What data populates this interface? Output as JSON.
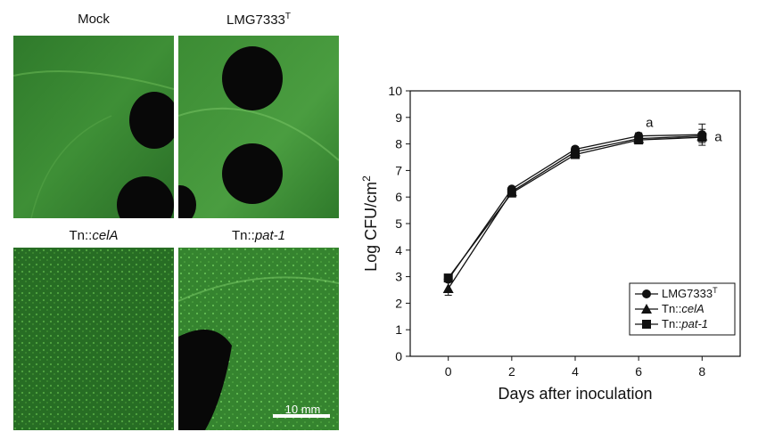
{
  "panels": {
    "mock": {
      "label": "Mock"
    },
    "lmg": {
      "label_main": "LMG7333",
      "label_sup": "T"
    },
    "cela": {
      "label_prefix": "Tn::",
      "label_gene": "celA"
    },
    "pat": {
      "label_prefix": "Tn::",
      "label_gene": "pat-1"
    },
    "scale_bar": {
      "label": "10 mm"
    },
    "colors": {
      "leaf": "#2e7d2a",
      "leaf_light": "#5fb04a",
      "hole": "#080808"
    }
  },
  "chart_data": {
    "type": "line",
    "xlabel": "Days after inoculation",
    "ylabel_main": "Log CFU/cm",
    "ylabel_sup": "2",
    "x": [
      0,
      2,
      4,
      6,
      8
    ],
    "xticks": [
      "0",
      "2",
      "4",
      "6",
      "8"
    ],
    "yticks": [
      "0",
      "1",
      "2",
      "3",
      "4",
      "5",
      "6",
      "7",
      "8",
      "9",
      "10"
    ],
    "xlim": [
      -1.2,
      9.2
    ],
    "ylim": [
      0,
      10
    ],
    "grid": false,
    "legend_position": "bottom-right",
    "series": [
      {
        "name": "LMG7333",
        "name_sup": "T",
        "marker": "circle",
        "values": [
          2.9,
          6.3,
          7.8,
          8.3,
          8.35
        ],
        "errors": [
          0.1,
          0.05,
          0.1,
          0.12,
          0.4
        ]
      },
      {
        "name_prefix": "Tn::",
        "name": "celA",
        "marker": "triangle",
        "values": [
          2.55,
          6.2,
          7.7,
          8.2,
          8.3
        ],
        "errors": [
          0.25,
          0.05,
          0.1,
          0.1,
          0.25
        ]
      },
      {
        "name_prefix": "Tn::",
        "name": "pat-1",
        "marker": "square",
        "values": [
          2.95,
          6.15,
          7.6,
          8.15,
          8.25
        ],
        "errors": [
          0.1,
          0.05,
          0.1,
          0.1,
          0.1
        ]
      }
    ],
    "annotations": [
      {
        "text": "a",
        "x": 6,
        "y": 8.3
      },
      {
        "text": "a",
        "x": 8,
        "y": 8.3
      }
    ]
  }
}
